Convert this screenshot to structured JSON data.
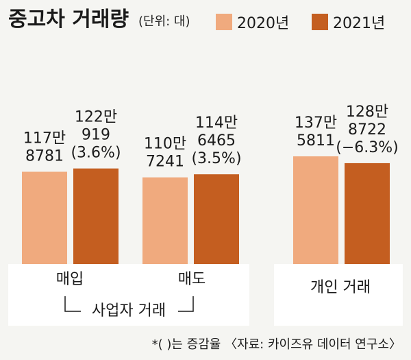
{
  "title": "중고차 거래량",
  "unit": "(단위: 대)",
  "legend": [
    "2020년",
    "2021년"
  ],
  "colors": {
    "2020": "#f0aa7e",
    "2021": "#c45e20",
    "background": "#f5f5f2",
    "panel": "#ffffff"
  },
  "group_label": "사업자 거래",
  "footnote": "*(  )는 증감율 〈자료: 카이즈유 데이터 연구소〉",
  "chart_data": {
    "type": "bar",
    "title": "중고차 거래량",
    "unit": "(단위: 대)",
    "categories": [
      "매입",
      "매도",
      "개인 거래"
    ],
    "series": [
      {
        "name": "2020년",
        "values": [
          1178781,
          1107241,
          1375811
        ]
      },
      {
        "name": "2021년",
        "values": [
          1220919,
          1146465,
          1288722
        ]
      }
    ],
    "value_labels": [
      [
        [
          "117만",
          "8781"
        ],
        [
          "122만",
          "919",
          "(3.6%)"
        ]
      ],
      [
        [
          "110만",
          "7241"
        ],
        [
          "114만",
          "6465",
          "(3.5%)"
        ]
      ],
      [
        [
          "137만",
          "5811"
        ],
        [
          "128만",
          "8722",
          "(−6.3%)"
        ]
      ]
    ],
    "changes": [
      "3.6%",
      "3.5%",
      "−6.3%"
    ],
    "legend_position": "top-right",
    "grid": false
  }
}
